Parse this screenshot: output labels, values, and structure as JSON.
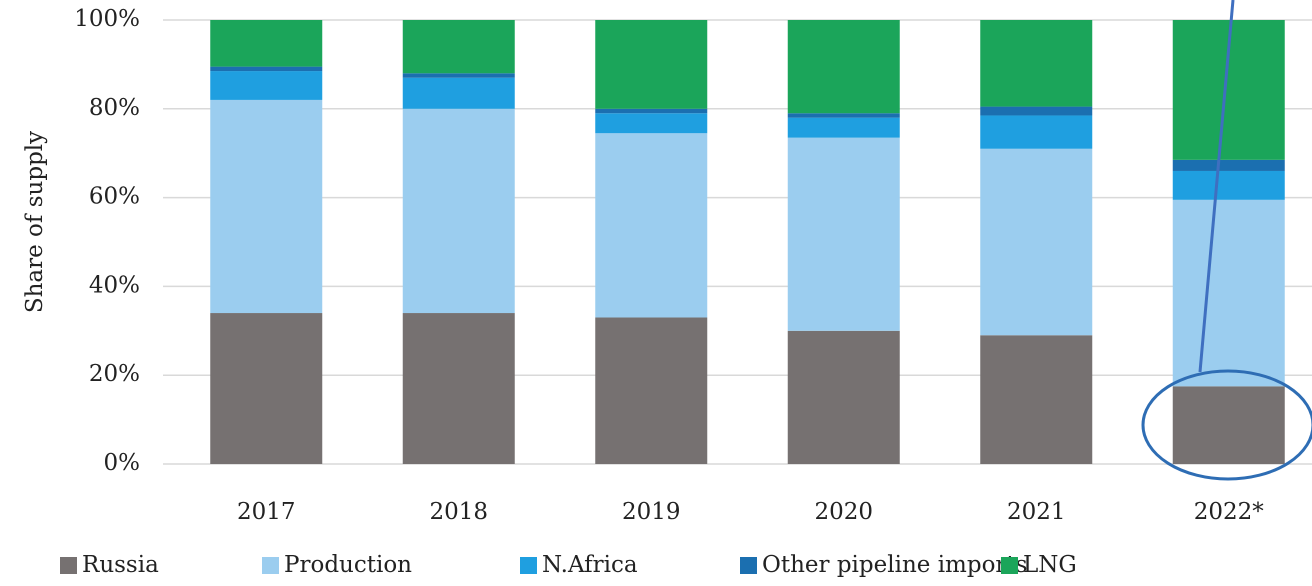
{
  "chart_data": {
    "type": "stacked_bar",
    "y_label": "Share of supply",
    "categories": [
      "2017",
      "2018",
      "2019",
      "2020",
      "2021",
      "2022*"
    ],
    "series": [
      {
        "name": "Russia",
        "color": "#767171",
        "values": [
          34,
          34,
          33,
          30,
          29,
          17.5
        ]
      },
      {
        "name": "Production",
        "color": "#9BCDEF",
        "values": [
          48,
          46,
          41.5,
          43.5,
          42,
          42
        ]
      },
      {
        "name": "N.Africa",
        "color": "#1F9FE0",
        "values": [
          6.5,
          7,
          4.5,
          4.5,
          7.5,
          6.5
        ]
      },
      {
        "name": "Other pipeline imports",
        "color": "#1B6FB0",
        "values": [
          1,
          1,
          1,
          1,
          2,
          2.5
        ]
      },
      {
        "name": "LNG",
        "color": "#1BA55A",
        "values": [
          10.5,
          12,
          20,
          21,
          19.5,
          31.5
        ]
      }
    ],
    "ylim": [
      0,
      100
    ],
    "yticks": [
      {
        "value": 0,
        "label": "0%"
      },
      {
        "value": 20,
        "label": "20%"
      },
      {
        "value": 40,
        "label": "40%"
      },
      {
        "value": 60,
        "label": "60%"
      },
      {
        "value": 80,
        "label": "80%"
      },
      {
        "value": 100,
        "label": "100%"
      }
    ],
    "grid": true
  }
}
